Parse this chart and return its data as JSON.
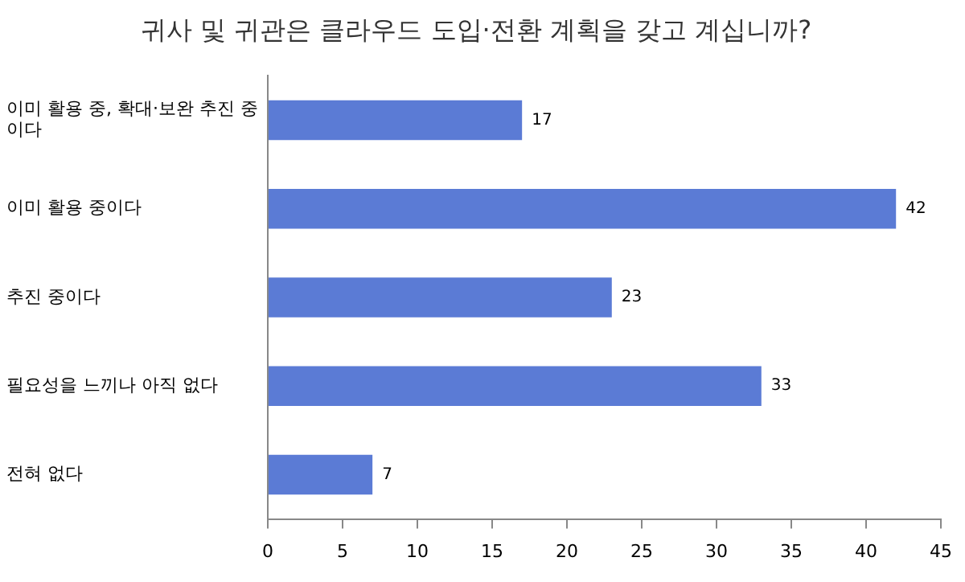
{
  "chart_data": {
    "type": "bar",
    "orientation": "horizontal",
    "title": "귀사 및 귀관은 클라우드 도입·전환 계획을 갖고 계십니까?",
    "categories": [
      "이미 활용 중, 확대·보완 추진 중이다",
      "이미 활용 중이다",
      "추진 중이다",
      "필요성을 느끼나 아직 없다",
      "전혀 없다"
    ],
    "values": [
      17,
      42,
      23,
      33,
      7
    ],
    "color": "#5b7bd5",
    "data_labels": true,
    "xlim": [
      0,
      45
    ],
    "xticks": [
      0,
      5,
      10,
      15,
      20,
      25,
      30,
      35,
      40,
      45
    ],
    "grid": false,
    "legend": false
  }
}
